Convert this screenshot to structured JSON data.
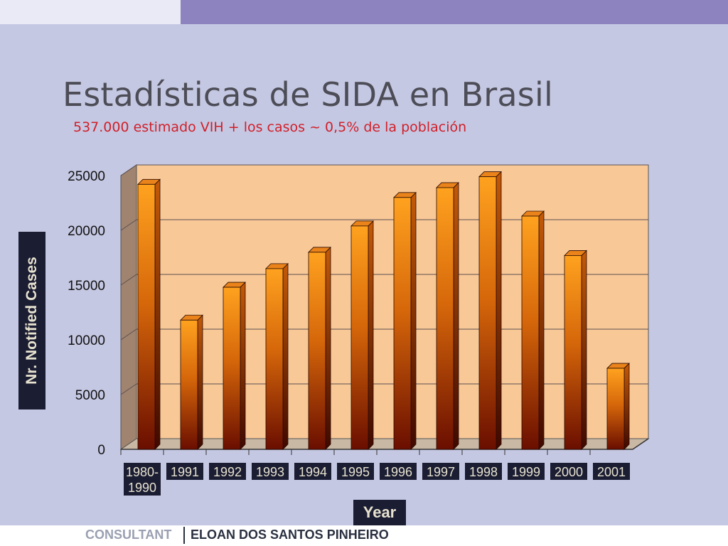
{
  "slide": {
    "title": "Estadísticas de SIDA en Brasil",
    "subtitle": "537.000 estimado VIH + los casos  ~ 0,5% de la población"
  },
  "footer": {
    "left": "CONSULTANT",
    "right": "ELOAN DOS SANTOS PINHEIRO"
  },
  "colors": {
    "background": "#c5c8e3",
    "plot_area": "#f9c897",
    "bar_top": "#ff9e1c",
    "bar_bottom": "#6a0e00",
    "title": "#4d4d57",
    "subtitle": "#d0202a",
    "label_box": "#1b1d33"
  },
  "chart_data": {
    "type": "bar",
    "categories": [
      "1980-\n1990",
      "1991",
      "1992",
      "1993",
      "1994",
      "1995",
      "1996",
      "1997",
      "1998",
      "1999",
      "2000",
      "2001"
    ],
    "values": [
      24200,
      11800,
      14800,
      16500,
      18000,
      20400,
      23000,
      23900,
      24900,
      21300,
      17700,
      7400
    ],
    "xlabel": "Year",
    "ylabel": "Nr. Notified Cases",
    "ylim": [
      0,
      25000
    ],
    "yticks": [
      0,
      5000,
      10000,
      15000,
      20000,
      25000
    ],
    "grid": true,
    "style": "3d"
  }
}
